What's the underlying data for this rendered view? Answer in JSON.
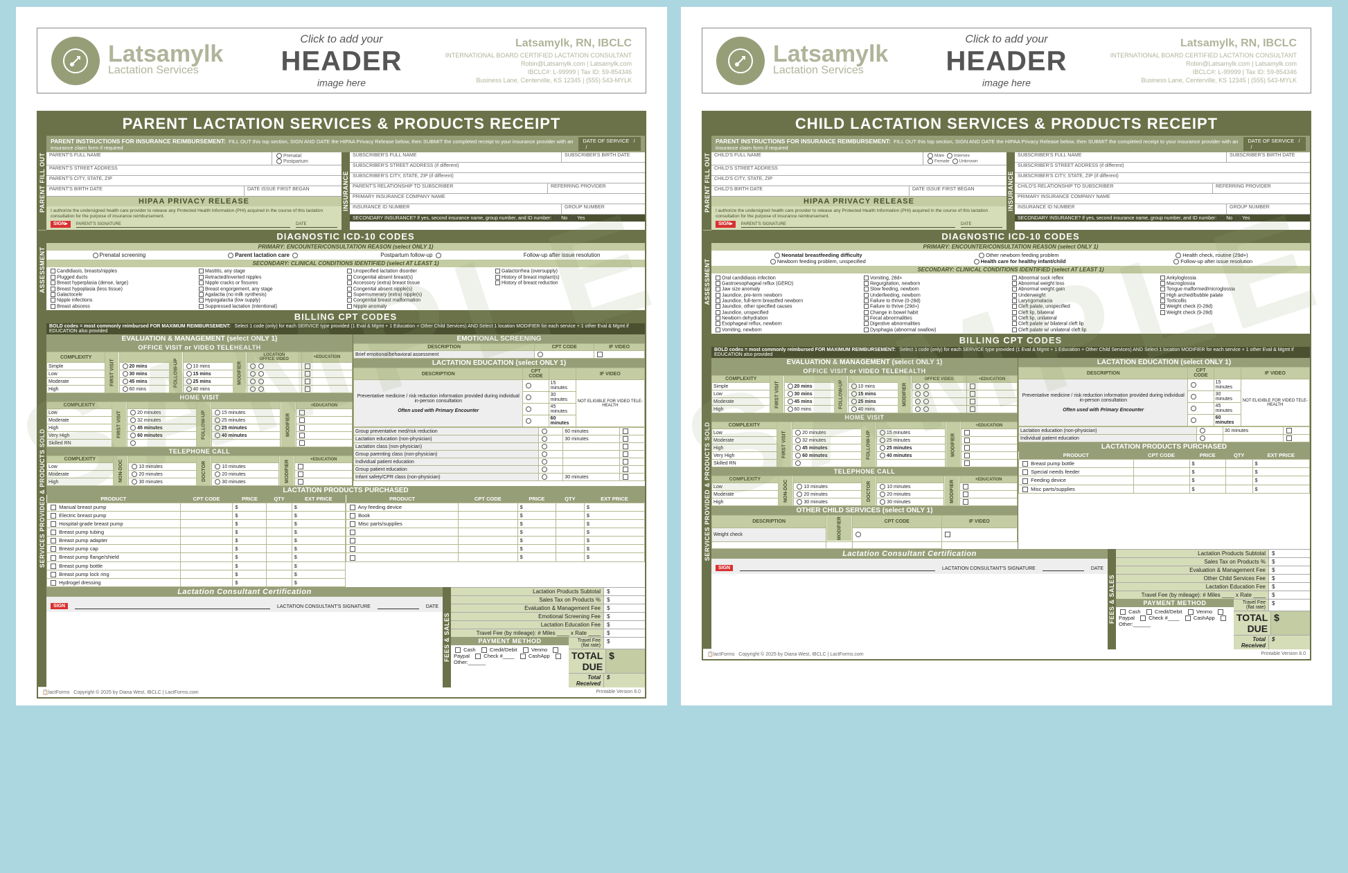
{
  "brand": {
    "name": "Latsamylk",
    "service_line": "Lactation Services",
    "header_cta_l1": "Click to add your",
    "header_cta_l2": "HEADER",
    "header_cta_l3": "image here",
    "provider_name": "Latsamylk, RN, IBCLC",
    "cert_line": "INTERNATIONAL BOARD CERTIFIED LACTATION CONSULTANT",
    "email": "Robin@Latsamylk.com | Latsamylk.com",
    "ids": "IBCLC#: L-99999 | Tax ID: 59-854346",
    "address": "Business Lane, Centerville, KS 12345 | (555) 543-MYLK"
  },
  "colors": {
    "dark": "#6b7249",
    "mid": "#969e78",
    "light": "#c3cca2",
    "pale": "#d5dcb8",
    "page_bg": "#acd6e0"
  },
  "parent": {
    "title": "PARENT LACTATION SERVICES & PRODUCTS RECEIPT",
    "instr_label": "PARENT INSTRUCTIONS FOR INSURANCE REIMBURSEMENT:",
    "instr_text": "FILL OUT this top section, SIGN AND DATE the HIPAA Privacy Release below, then SUBMIT the completed receipt to your insurance provider with an insurance claim form if required",
    "date_of_service": "DATE OF SERVICE",
    "fields_left": [
      "PARENT'S FULL NAME",
      "PARENT'S STREET ADDRESS",
      "PARENT'S CITY, STATE, ZIP",
      "PARENT'S BIRTH DATE"
    ],
    "fields_right": [
      "SUBSCRIBER'S FULL NAME",
      "SUBSCRIBER'S STREET ADDRESS (if different)",
      "SUBSCRIBER'S CITY, STATE, ZIP (if different)",
      "PARENT'S RELATIONSHIP TO SUBSCRIBER",
      "PRIMARY INSURANCE COMPANY NAME",
      "INSURANCE ID NUMBER"
    ],
    "gender_opts": [
      "Prenatal",
      "Postpartum"
    ],
    "subscriber_bd": "SUBSCRIBER'S BIRTH DATE",
    "date_issue": "DATE ISSUE FIRST BEGAN",
    "referring": "REFERRING PROVIDER",
    "group": "GROUP NUMBER",
    "secondary_ins": "SECONDARY INSURANCE?  If yes, second insurance name, group number, and ID number:",
    "hipaa_title": "HIPAA PRIVACY RELEASE",
    "hipaa_text": "I authorize the undersigned health care provider to release any Protected Health Information (PHI) acquired in the course of this lactation consultation for the purpose of insurance reimbursement.",
    "hipaa_sig": "PARENT'S SIGNATURE",
    "hipaa_date": "DATE",
    "icd_title": "DIAGNOSTIC ICD-10 CODES",
    "icd_primary_label": "PRIMARY:  ENCOUNTER/CONSULTATION REASON  (select ONLY 1)",
    "icd_primary_opts": [
      "Prenatal screening",
      "Parent lactation care",
      "Postpartum follow-up",
      "Follow-up after issue resolution"
    ],
    "icd_secondary_label": "SECONDARY:  CLINICAL CONDITIONS IDENTIFIED  (select AT LEAST 1)",
    "icd_conditions": [
      "Candidiasis, breasts/nipples",
      "Mastitis, any stage",
      "Unspecified lactation disorder",
      "Galactorrhea (oversupply)",
      "Plugged ducts",
      "Retracted/inverted nipples",
      "Congenital absent breast(s)",
      "History of breast implant(s)",
      "Breast hyperplasia (dense, large)",
      "Nipple cracks or fissures",
      "Accessory (extra) breast tissue",
      "History of breast reduction",
      "Breast hypoplasia (less tissue)",
      "Breast engorgement, any stage",
      "Congenital absent nipple(s)",
      "",
      "Galactocele",
      "Agalactia (no milk synthesis)",
      "Supernumerary (extra) nipple(s)",
      "",
      "Nipple infections",
      "Hypogalactia (low supply)",
      "Congenital breast malformation",
      "",
      "Breast abscess",
      "Suppressed lactation (intentional)",
      "Nipple anomaly",
      ""
    ],
    "cpt_title": "BILLING CPT CODES",
    "cpt_note": "BOLD codes = most commonly reimbursed     FOR MAXIMUM REIMBURSEMENT:",
    "cpt_note2": "Select 1 code (only) for each SERVICE type provided (1 Eval & Mgmt + 1 Education + Other Child Services) AND Select 1 location MODIFIER for each service + 1 other Eval & Mgmt if EDUCATION also provided",
    "eval_title": "EVALUATION & MANAGEMENT  (select ONLY 1)",
    "emo_title": "EMOTIONAL SCREENING",
    "emo_desc_h": "DESCRIPTION",
    "emo_cpt_h": "CPT CODE",
    "emo_video_h": "IF VIDEO",
    "emo_row": "Brief emotional/behavioral assessment",
    "office_title": "OFFICE VISIT or VIDEO TELEHEALTH",
    "complexity_h": "COMPLEXITY",
    "complexity_levels": [
      "Simple",
      "Low",
      "Moderate",
      "High"
    ],
    "office_mins": [
      "20 mins",
      "30 mins",
      "45 mins",
      "60 mins"
    ],
    "office_mins2": [
      "10 mins",
      "15 mins",
      "25 mins",
      "40 mins"
    ],
    "home_title": "HOME VISIT",
    "home_levels": [
      "Low",
      "Moderate",
      "High",
      "Very High",
      "Skilled RN"
    ],
    "home_mins": [
      "20 minutes",
      "32 minutes",
      "45 minutes",
      "60 minutes",
      ""
    ],
    "home_mins2": [
      "15 minutes",
      "25 minutes",
      "25 minutes",
      "40 minutes",
      ""
    ],
    "tel_title": "TELEPHONE CALL",
    "tel_levels": [
      "Low",
      "Moderate",
      "High"
    ],
    "tel_mins": [
      "10 minutes",
      "20 minutes",
      "30 minutes"
    ],
    "tel_mins2": [
      "10 minutes",
      "20 minutes",
      "30 minutes"
    ],
    "edu_title": "LACTATION EDUCATION  (select ONLY 1)",
    "edu_desc": "Preventative medicine / risk reduction information provided during individual in-person consultation",
    "edu_often": "Often used with Primary Encounter",
    "edu_mins": [
      "15 minutes",
      "30 minutes",
      "45 minutes",
      "60 minutes"
    ],
    "edu_not": "NOT ELIGIBLE FOR VIDEO TELE-HEALTH",
    "edu_rows": [
      "Group preventative med/risk reduction",
      "Lactation education (non-physician)",
      "Lactation class (non-physician)",
      "Group parenting class (non-physician)",
      "Individual patient education",
      "Group patient education",
      "Infant safety/CPR class (non-physician)"
    ],
    "edu_row_mins": [
      "60 minutes",
      "30 minutes",
      "",
      "",
      "",
      "",
      "30 minutes"
    ],
    "prod_title": "LACTATION PRODUCTS PURCHASED",
    "prod_headers": [
      "PRODUCT",
      "CPT CODE",
      "PRICE",
      "QTY",
      "EXT PRICE"
    ],
    "prod_left": [
      "Manual breast pump",
      "Electric breast pump",
      "Hospital-grade breast pump",
      "Breast pump tubing",
      "Breast pump adapter",
      "Breast pump cap",
      "Breast pump flange/shield",
      "Breast pump bottle",
      "Breast pump lock ring",
      "Hydrogel dressing"
    ],
    "prod_right": [
      "Any feeding device",
      "Book",
      "Misc parts/supplies",
      "",
      "",
      "",
      ""
    ],
    "cert_title": "Lactation Consultant Certification",
    "fees_label": "FEES & SALES",
    "fee_rows": [
      "Lactation Products Subtotal",
      "Sales Tax on Products        %",
      "Evaluation & Management Fee",
      "Emotional Screening Fee",
      "Lactation Education Fee"
    ],
    "travel_row": "Travel Fee (by mileage):  # Miles ____  x Rate ____",
    "travel_flat": "Travel Fee (flat rate)",
    "pay_title": "PAYMENT METHOD",
    "pay_opts": [
      "Cash",
      "Credit/Debit",
      "Venmo",
      "Paypal",
      "Check #____",
      "CashApp",
      "Other:______"
    ],
    "total_due": "TOTAL DUE",
    "total_rec": "Total Received",
    "sig_label": "LACTATION CONSULTANT'S SIGNATURE",
    "date_label": "DATE",
    "copyright": "Copyright © 2025 by Diana West, IBCLC | LactForms.com",
    "version": "Printable Version 8.0",
    "vlabels": [
      "PARENT FILL OUT",
      "INSURANCE",
      "ASSESSMENT",
      "SERVICES PROVIDED & PRODUCTS SOLD"
    ],
    "first_visit": "FIRST VISIT",
    "follow_up": "FOLLOW-UP",
    "modifier": "MODIFIER",
    "non_doc": "NON-DOC",
    "doctor": "DOCTOR",
    "location": "LOCATION",
    "office": "OFFICE",
    "video": "VIDEO",
    "education": "+EDUCATION"
  },
  "child": {
    "title": "CHILD LACTATION SERVICES & PRODUCTS RECEIPT",
    "fields_left": [
      "CHILD'S FULL NAME",
      "CHILD'S STREET ADDRESS",
      "CHILD'S CITY, STATE, ZIP",
      "CHILD'S BIRTH DATE"
    ],
    "fields_right_extra": "CHILD'S RELATIONSHIP TO SUBSCRIBER",
    "gender_opts": [
      "Male",
      "Female",
      "Intersex",
      "Unknown"
    ],
    "icd_primary_opts": [
      "Neonatal breastfeeding difficulty",
      "Other newborn feeding problem",
      "Health check, routine (29d+)",
      "Newborn feeding problem, unspecified",
      "Health care for healthy infant/child",
      "Follow-up after issue resolution"
    ],
    "icd_conditions": [
      "Oral candidiasis infection",
      "Vomiting, 28d+",
      "Abnormal suck reflex",
      "Ankyloglossia",
      "Gastroesophageal reflux (GERD)",
      "Regurgitation, newborn",
      "Abnormal weight loss",
      "Macroglossia",
      "Jaw size anomaly",
      "Slow feeding, newborn",
      "Abnormal weight gain",
      "Tongue malformed/microglossia",
      "Jaundice, pre-term newborn",
      "Underfeeding, newborn",
      "Underweight",
      "High arched/bubble palate",
      "Jaundice, full-term breastfed newborn",
      "Failure to thrive (0-28d)",
      "Laryngomalacia",
      "Torticollis",
      "Jaundice, other specified causes",
      "Failure to thrive (29d+)",
      "Cleft palate, unspecified",
      "Weight check (0-28d)",
      "Jaundice, unspecified",
      "Change in bowel habit",
      "Cleft lip, bilateral",
      "Weight check (9-28d)",
      "Newborn dehydration",
      "Fecal abnormalities",
      "Cleft lip, unilateral",
      "",
      "Esophageal reflux, newborn",
      "Digestive abnormalities",
      "Cleft palate w/ bilateral cleft lip",
      "",
      "Vomiting, newborn",
      "Dysphagia (abnormal swallow)",
      "Cleft palate w/ unilateral cleft lip",
      ""
    ],
    "edu_rows": [
      "Lactation education (non-physician)",
      "Individual patient education"
    ],
    "edu_row_mins": [
      "30 minutes",
      ""
    ],
    "prod_rows": [
      "Breast pump bottle",
      "Special needs feeder",
      "Feeding device",
      "Misc parts/supplies"
    ],
    "other_title": "OTHER CHILD SERVICES  (select ONLY 1)",
    "other_row": "Weight check",
    "fee_rows": [
      "Lactation Products Subtotal",
      "Sales Tax on Products        %",
      "Evaluation & Management Fee",
      "Other Child Services Fee",
      "Lactation Education Fee"
    ]
  }
}
